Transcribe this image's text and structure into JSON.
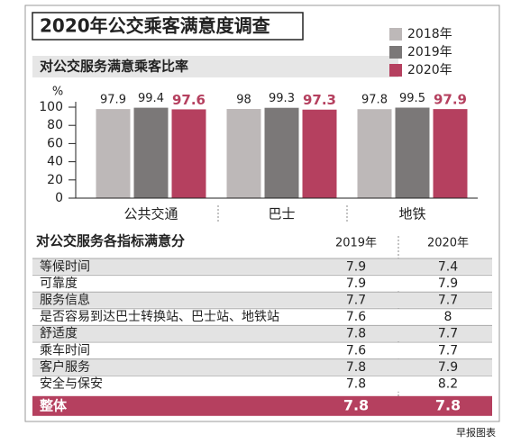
{
  "title": "2020年公交乘客满意度调查",
  "chart_data": {
    "type": "bar",
    "title": "对公交服务满意乘客比率",
    "y_label": "%",
    "categories": [
      "公共交通",
      "巴士",
      "地铁"
    ],
    "series": [
      {
        "name": "2018年",
        "color": "#bdb8b8",
        "values": [
          97.9,
          98,
          97.8
        ]
      },
      {
        "name": "2019年",
        "color": "#7b7878",
        "values": [
          99.4,
          99.3,
          99.5
        ]
      },
      {
        "name": "2020年",
        "color": "#b5405f",
        "values": [
          97.6,
          97.3,
          97.9
        ]
      }
    ],
    "ylim": [
      0,
      100
    ],
    "yticks": [
      0,
      20,
      40,
      60,
      80,
      100
    ],
    "legend": "top-right"
  },
  "table": {
    "title": "对公交服务各指标满意分",
    "columns": [
      "2019年",
      "2020年"
    ],
    "rows": [
      [
        "等候时间",
        7.9,
        7.4
      ],
      [
        "可靠度",
        7.9,
        7.9
      ],
      [
        "服务信息",
        7.7,
        7.7
      ],
      [
        "是否容易到达巴士转换站、巴士站、地铁站",
        7.6,
        8
      ],
      [
        "舒适度",
        7.8,
        7.7
      ],
      [
        "乘车时间",
        7.6,
        7.7
      ],
      [
        "客户服务",
        7.8,
        7.9
      ],
      [
        "安全与保安",
        7.8,
        8.2
      ]
    ],
    "total": [
      "整体",
      7.8,
      7.8
    ]
  },
  "footer": "早报图表"
}
